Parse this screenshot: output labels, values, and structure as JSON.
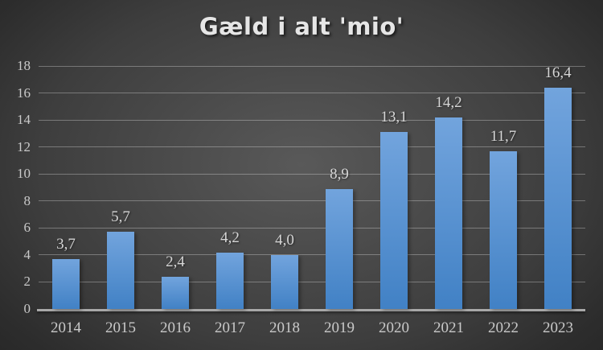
{
  "chart_data": {
    "type": "bar",
    "title": "Gæld i alt 'mio'",
    "categories": [
      "2014",
      "2015",
      "2016",
      "2017",
      "2018",
      "2019",
      "2020",
      "2021",
      "2022",
      "2023"
    ],
    "values": [
      3.7,
      5.7,
      2.4,
      4.2,
      4.0,
      8.9,
      13.1,
      14.2,
      11.7,
      16.4
    ],
    "value_labels": [
      "3,7",
      "5,7",
      "2,4",
      "4,2",
      "4,0",
      "8,9",
      "13,1",
      "14,2",
      "11,7",
      "16,4"
    ],
    "xlabel": "",
    "ylabel": "",
    "ylim": [
      0,
      18
    ],
    "ytick_step": 2,
    "ytick_labels": [
      "0",
      "2",
      "4",
      "6",
      "8",
      "10",
      "12",
      "14",
      "16",
      "18"
    ],
    "grid": true,
    "legend": false,
    "decimal_separator": ",",
    "colors": {
      "bar_gradient_top": "#72a4dd",
      "bar_gradient_bottom": "#4181c5",
      "background_center": "#595959",
      "background_edge": "#242424",
      "gridline": "rgba(255,255,255,0.30)",
      "axis_line": "#a8a8a8",
      "tick_label": "#c9c9c9",
      "value_label": "#d6d6d6",
      "title": "#e6e6e6"
    }
  }
}
